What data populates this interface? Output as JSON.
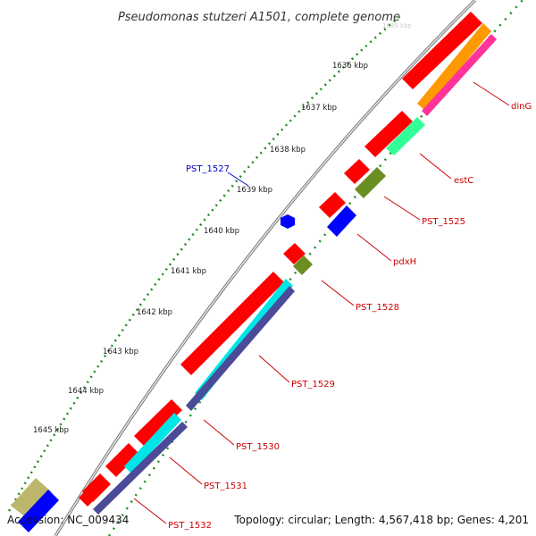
{
  "title": "Pseudomonas stutzeri A1501, complete genome",
  "footer": {
    "accession": "Accession: NC_009434",
    "topology": "Topology: circular; Length: 4,567,418 bp; Genes: 4,201"
  },
  "ticks": [
    "1636 kbp",
    "1637 kbp",
    "1638 kbp",
    "1639 kbp",
    "1640 kbp",
    "1641 kbp",
    "1642 kbp",
    "1643 kbp",
    "1644 kbp",
    "1645 kbp"
  ],
  "genes": [
    {
      "name": "dinG",
      "color": "#cc0000"
    },
    {
      "name": "estC",
      "color": "#cc0000"
    },
    {
      "name": "PST_1525",
      "color": "#cc0000"
    },
    {
      "name": "PST_1527",
      "color": "#0000cc"
    },
    {
      "name": "pdxH",
      "color": "#cc0000"
    },
    {
      "name": "PST_1528",
      "color": "#cc0000"
    },
    {
      "name": "PST_1529",
      "color": "#cc0000"
    },
    {
      "name": "PST_1530",
      "color": "#cc0000"
    },
    {
      "name": "PST_1531",
      "color": "#cc0000"
    },
    {
      "name": "PST_1532",
      "color": "#cc0000"
    }
  ],
  "colors": {
    "cds_red": "#ff0000",
    "orange": "#ff9900",
    "pink": "#ff3399",
    "green": "#33ff99",
    "olive": "#6b8e23",
    "blue": "#0000ff",
    "cyan": "#00e5e5",
    "slate": "#4b4b99",
    "khaki": "#bdb76b",
    "backbone": "#888888",
    "dots": "#228b22"
  }
}
